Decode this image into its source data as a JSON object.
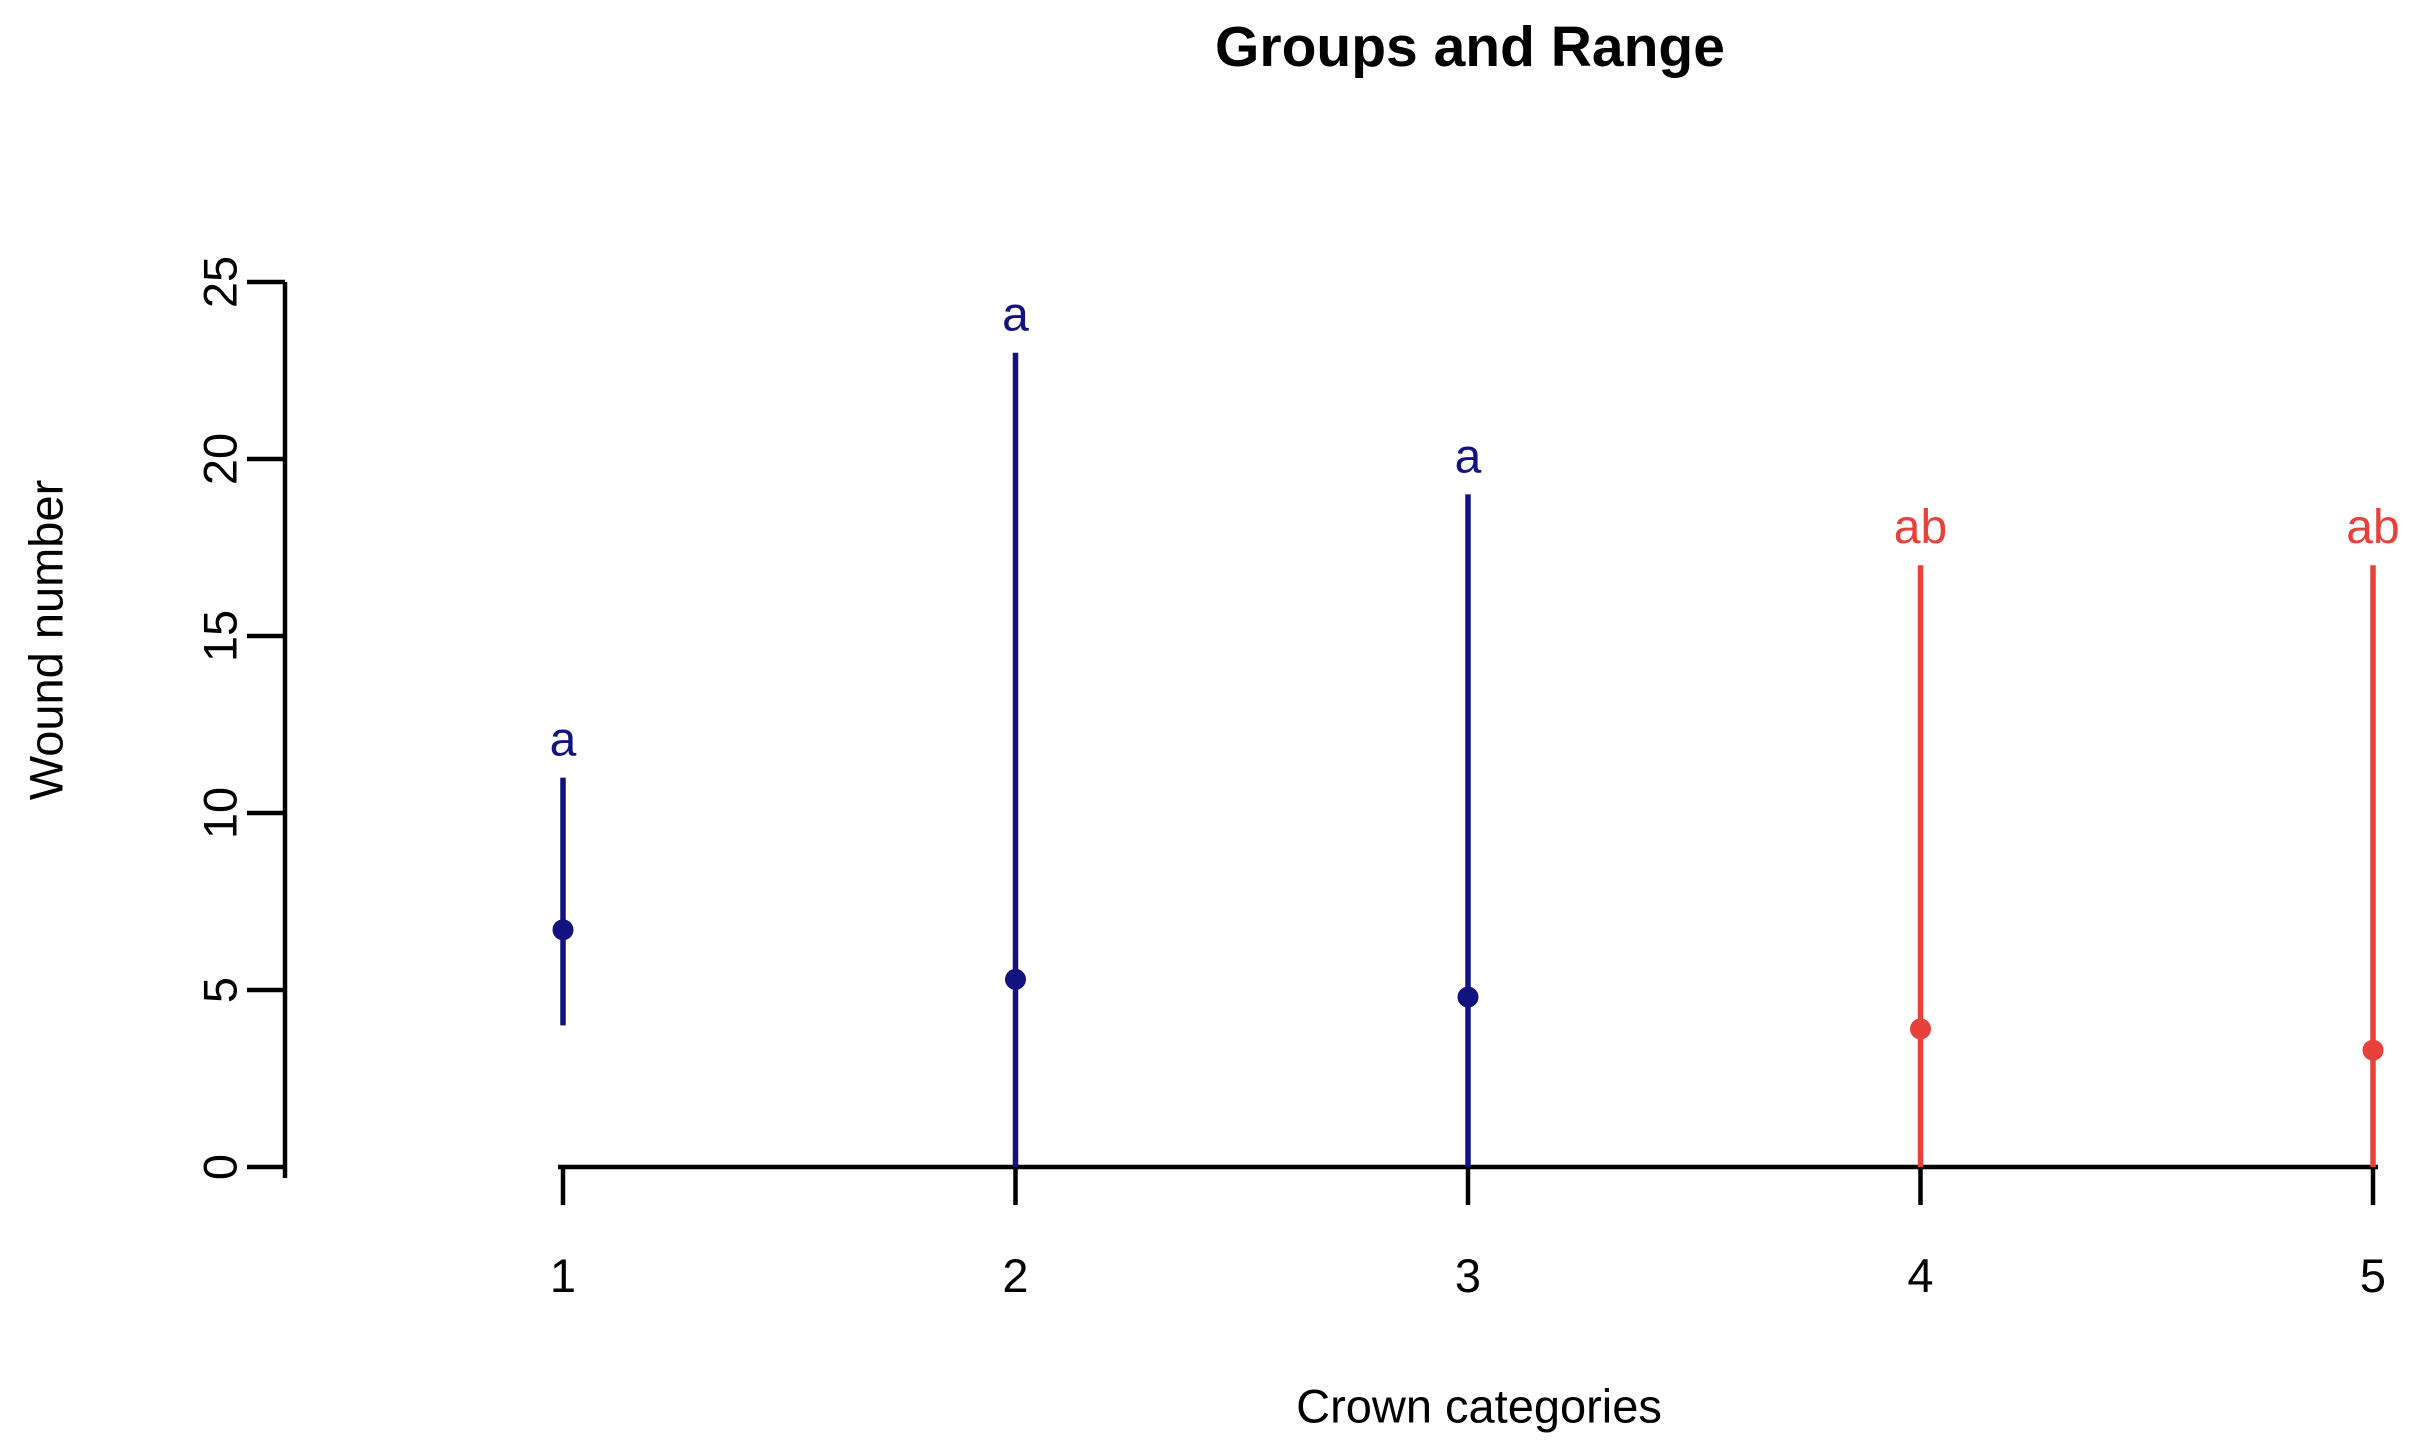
{
  "chart_data": {
    "type": "scatter",
    "subtype": "mean-with-min-max-range",
    "title": "Groups and Range",
    "xlabel": "Crown categories",
    "ylabel": "Wound number",
    "categories": [
      "1",
      "2",
      "3",
      "4",
      "5"
    ],
    "ylim": [
      0,
      25
    ],
    "yticks": [
      0,
      5,
      10,
      15,
      20,
      25
    ],
    "grid": false,
    "legend_position": "none",
    "colors": {
      "group_a": "#121280",
      "group_ab": "#e8403a",
      "axis": "#000000",
      "background": "#ffffff"
    },
    "series": [
      {
        "category": "1",
        "mean": 6.7,
        "min": 4,
        "max": 11,
        "group_label": "a",
        "color": "#121280"
      },
      {
        "category": "2",
        "mean": 5.3,
        "min": 0,
        "max": 23,
        "group_label": "a",
        "color": "#121280"
      },
      {
        "category": "3",
        "mean": 4.8,
        "min": 0,
        "max": 19,
        "group_label": "a",
        "color": "#121280"
      },
      {
        "category": "4",
        "mean": 3.9,
        "min": 0,
        "max": 17,
        "group_label": "ab",
        "color": "#e8403a"
      },
      {
        "category": "5",
        "mean": 3.3,
        "min": 0,
        "max": 17,
        "group_label": "ab",
        "color": "#e8403a"
      }
    ]
  }
}
